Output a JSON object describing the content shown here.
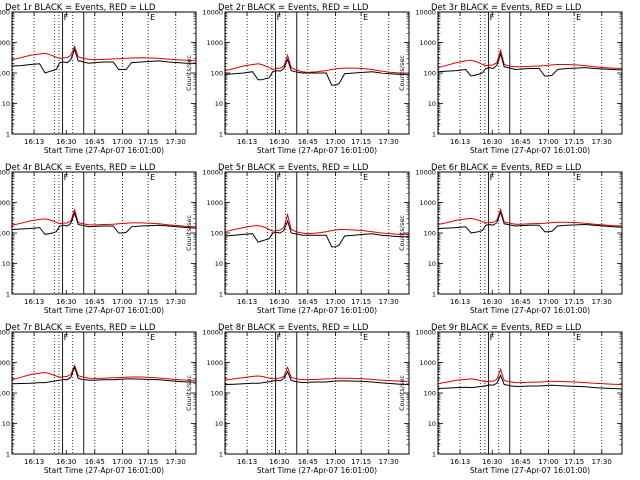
{
  "colors": {
    "events": "#000000",
    "lld": "#e00000",
    "frame": "#000000",
    "background": "#ffffff"
  },
  "chart_data": {
    "type": "line",
    "title_suffix": " BLACK = Events, RED = LLD",
    "xlabel": "Start Time (27-Apr-07 16:01:00)",
    "ylabel": "Counts/sec",
    "y_scale": "log",
    "ylim": [
      1,
      10000
    ],
    "y_ticks": [
      1,
      10,
      100,
      1000,
      10000
    ],
    "y_tick_labels": [
      "1",
      "10",
      "100",
      "1000",
      "10000"
    ],
    "xlim_min": [
      0,
      100
    ],
    "x_ticks_min": [
      12,
      29.5,
      45,
      60,
      74,
      89
    ],
    "x_tick_labels": [
      "16:13",
      "16:30",
      "16:45",
      "17:00",
      "17:15",
      "17:30"
    ],
    "dotted_lines_min": [
      0.5,
      12,
      23,
      25.5,
      33,
      45,
      60,
      74,
      89
    ],
    "solid_lines_min": [
      27.5,
      39
    ],
    "corner_markers": [
      {
        "label": "F",
        "x_min": 27.5
      },
      {
        "label": "E",
        "x_min": 74.5
      }
    ],
    "x_samples_min": [
      0,
      5,
      10,
      15,
      18,
      20,
      22,
      24,
      26,
      28,
      30,
      32,
      34,
      36,
      38,
      40,
      42,
      45,
      50,
      55,
      58,
      60,
      62,
      65,
      70,
      75,
      80,
      85,
      90,
      95,
      100
    ],
    "panels": [
      {
        "label": "Det 1r",
        "events": [
          170,
          175,
          190,
          200,
          100,
          110,
          120,
          130,
          220,
          230,
          220,
          280,
          600,
          250,
          240,
          220,
          210,
          220,
          230,
          230,
          130,
          130,
          130,
          220,
          230,
          240,
          250,
          230,
          220,
          210,
          210
        ],
        "lld": [
          270,
          320,
          380,
          420,
          440,
          410,
          370,
          330,
          300,
          310,
          320,
          380,
          750,
          340,
          310,
          295,
          280,
          275,
          280,
          290,
          295,
          300,
          305,
          310,
          315,
          310,
          300,
          285,
          270,
          260,
          250
        ]
      },
      {
        "label": "Det 2r",
        "events": [
          90,
          95,
          100,
          110,
          60,
          60,
          65,
          70,
          110,
          120,
          115,
          140,
          280,
          120,
          110,
          105,
          100,
          100,
          100,
          100,
          40,
          40,
          45,
          95,
          100,
          105,
          110,
          100,
          95,
          90,
          90
        ],
        "lld": [
          120,
          140,
          170,
          190,
          200,
          190,
          170,
          150,
          130,
          140,
          145,
          170,
          380,
          150,
          130,
          120,
          110,
          105,
          110,
          120,
          130,
          135,
          140,
          145,
          145,
          140,
          130,
          115,
          105,
          100,
          100
        ]
      },
      {
        "label": "Det 3r",
        "events": [
          110,
          115,
          120,
          130,
          80,
          85,
          90,
          100,
          140,
          150,
          140,
          180,
          420,
          160,
          150,
          140,
          130,
          135,
          140,
          140,
          80,
          80,
          85,
          130,
          140,
          145,
          150,
          140,
          135,
          130,
          125
        ],
        "lld": [
          150,
          180,
          220,
          250,
          260,
          245,
          220,
          195,
          175,
          180,
          185,
          220,
          560,
          190,
          175,
          165,
          160,
          160,
          165,
          170,
          175,
          180,
          185,
          190,
          190,
          185,
          175,
          160,
          150,
          145,
          140
        ]
      },
      {
        "label": "Det 4r",
        "events": [
          130,
          135,
          140,
          150,
          90,
          95,
          100,
          110,
          170,
          180,
          170,
          210,
          450,
          190,
          180,
          170,
          160,
          165,
          170,
          170,
          100,
          100,
          105,
          160,
          170,
          175,
          180,
          170,
          160,
          150,
          145
        ],
        "lld": [
          180,
          210,
          250,
          280,
          290,
          275,
          250,
          225,
          205,
          210,
          215,
          250,
          580,
          220,
          205,
          195,
          185,
          185,
          190,
          195,
          200,
          205,
          210,
          215,
          215,
          210,
          200,
          185,
          175,
          165,
          160
        ]
      },
      {
        "label": "Det 5r",
        "events": [
          80,
          85,
          90,
          95,
          50,
          55,
          60,
          65,
          100,
          105,
          100,
          120,
          250,
          100,
          95,
          90,
          85,
          85,
          85,
          85,
          35,
          35,
          40,
          80,
          85,
          90,
          95,
          85,
          80,
          75,
          75
        ],
        "lld": [
          110,
          130,
          150,
          170,
          175,
          165,
          150,
          130,
          115,
          120,
          125,
          150,
          400,
          130,
          115,
          105,
          100,
          95,
          100,
          110,
          120,
          125,
          130,
          130,
          125,
          120,
          110,
          100,
          95,
          90,
          90
        ]
      },
      {
        "label": "Det 6r",
        "events": [
          140,
          145,
          150,
          160,
          100,
          105,
          110,
          120,
          180,
          190,
          180,
          220,
          480,
          200,
          190,
          180,
          170,
          175,
          180,
          180,
          110,
          110,
          115,
          170,
          180,
          185,
          190,
          180,
          170,
          160,
          155
        ],
        "lld": [
          190,
          220,
          260,
          290,
          300,
          285,
          260,
          235,
          215,
          220,
          225,
          260,
          600,
          230,
          215,
          205,
          195,
          195,
          200,
          205,
          210,
          215,
          220,
          225,
          225,
          220,
          210,
          195,
          185,
          175,
          170
        ]
      },
      {
        "label": "Det 7r",
        "events": [
          200,
          205,
          210,
          220,
          220,
          230,
          240,
          250,
          260,
          280,
          270,
          330,
          700,
          300,
          280,
          270,
          260,
          265,
          270,
          270,
          280,
          285,
          290,
          290,
          285,
          280,
          270,
          255,
          240,
          230,
          225
        ],
        "lld": [
          270,
          330,
          400,
          450,
          470,
          440,
          400,
          360,
          330,
          340,
          350,
          410,
          800,
          370,
          340,
          320,
          305,
          300,
          305,
          315,
          320,
          325,
          330,
          335,
          335,
          325,
          310,
          290,
          275,
          265,
          260
        ]
      },
      {
        "label": "Det 8r",
        "events": [
          190,
          195,
          200,
          210,
          210,
          215,
          225,
          235,
          245,
          260,
          250,
          300,
          500,
          260,
          240,
          230,
          220,
          225,
          230,
          230,
          240,
          245,
          250,
          250,
          245,
          240,
          230,
          215,
          205,
          195,
          190
        ],
        "lld": [
          260,
          290,
          320,
          350,
          360,
          350,
          330,
          310,
          290,
          300,
          310,
          350,
          700,
          320,
          300,
          285,
          275,
          275,
          280,
          290,
          295,
          300,
          305,
          305,
          300,
          295,
          280,
          265,
          255,
          245,
          240
        ]
      },
      {
        "label": "Det 9r",
        "events": [
          140,
          145,
          150,
          155,
          150,
          155,
          160,
          165,
          175,
          185,
          180,
          210,
          380,
          190,
          180,
          170,
          165,
          165,
          170,
          170,
          175,
          180,
          180,
          175,
          170,
          165,
          160,
          150,
          145,
          140,
          135
        ],
        "lld": [
          200,
          230,
          260,
          280,
          290,
          280,
          265,
          250,
          235,
          240,
          245,
          280,
          600,
          255,
          240,
          230,
          220,
          220,
          225,
          230,
          235,
          240,
          240,
          240,
          235,
          230,
          220,
          210,
          200,
          195,
          190
        ]
      }
    ]
  }
}
